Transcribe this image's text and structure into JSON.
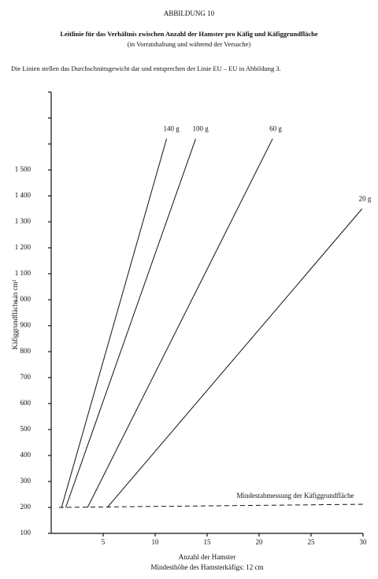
{
  "chart_data": {
    "type": "line",
    "figure_label": "ABBILDUNG 10",
    "title": "Leitlinie für das Verhältnis zwischen Anzahl der Hamster pro Käfig und Käfiggrundfläche",
    "subtitle": "(in Vorratshaltung und während der Versuche)",
    "note": "Die Linien stellen das Durchschnittsgewicht dar und entsprechen der Linie EU – EU in Abbildung 3.",
    "xlabel": "Anzahl der Hamster",
    "xlabel2": "Mindesthöhe des Hamsterkäfigs: 12 cm",
    "ylabel": "Käfiggrundfläche in cm²",
    "xlim": [
      0,
      30
    ],
    "ylim": [
      100,
      1800
    ],
    "xticks": [
      5,
      10,
      15,
      20,
      25,
      30
    ],
    "yticks": [
      100,
      200,
      300,
      400,
      500,
      600,
      700,
      800,
      900,
      {
        "value": 1000,
        "label": "1 000"
      },
      {
        "value": 1100,
        "label": "1 100"
      },
      {
        "value": 1200,
        "label": "1 200"
      },
      {
        "value": 1300,
        "label": "1 300"
      },
      {
        "value": 1400,
        "label": "1 400"
      },
      {
        "value": 1500,
        "label": "1 500"
      }
    ],
    "yminor_ticks": [
      1600,
      1700,
      1800
    ],
    "series": [
      {
        "name": "140 g",
        "color": "#111",
        "x": [
          1,
          11.1
        ],
        "values": [
          200,
          1620
        ]
      },
      {
        "name": "100 g",
        "color": "#111",
        "x": [
          1.4,
          13.9
        ],
        "values": [
          200,
          1620
        ]
      },
      {
        "name": "60 g",
        "color": "#111",
        "x": [
          3.5,
          21.3
        ],
        "values": [
          200,
          1620
        ]
      },
      {
        "name": "20 g",
        "color": "#111",
        "x": [
          5.4,
          29.9
        ],
        "values": [
          200,
          1350
        ]
      },
      {
        "name": "Mindestabmessung der Käfiggrundfläche",
        "color": "#111",
        "dashed": true,
        "x": [
          0.75,
          30
        ],
        "values": [
          200,
          212
        ]
      }
    ]
  }
}
